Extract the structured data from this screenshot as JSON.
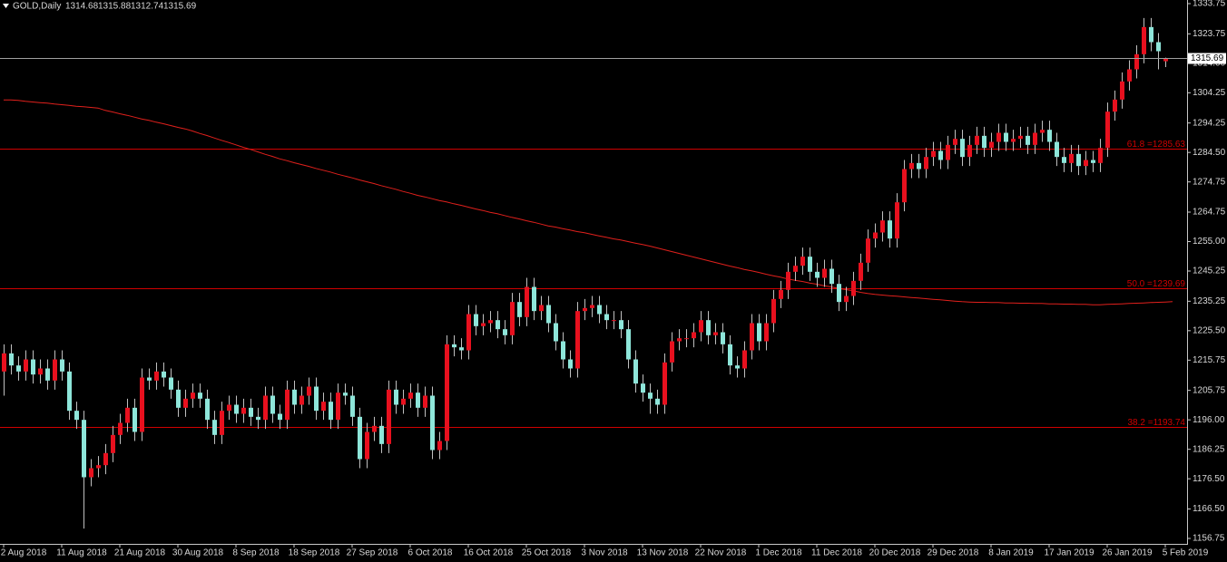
{
  "chart_data": {
    "type": "candlestick",
    "title": "GOLD,Daily",
    "x": [
      "2 Aug 2018",
      null,
      null,
      null,
      null,
      null,
      null,
      null,
      "11 Aug 2018",
      null,
      null,
      null,
      null,
      null,
      null,
      null,
      "21 Aug 2018",
      null,
      null,
      null,
      null,
      null,
      null,
      null,
      "30 Aug 2018",
      null,
      null,
      null,
      null,
      null,
      null,
      null,
      "8 Sep 2018",
      null,
      null,
      null,
      null,
      null,
      null,
      null,
      "18 Sep 2018",
      null,
      null,
      null,
      null,
      null,
      null,
      null,
      "27 Sep 2018",
      null,
      null,
      null,
      null,
      null,
      null,
      null,
      "6 Oct 2018",
      null,
      null,
      null,
      null,
      null,
      null,
      null,
      "16 Oct 2018",
      null,
      null,
      null,
      null,
      null,
      null,
      null,
      "25 Oct 2018",
      null,
      null,
      null,
      null,
      null,
      null,
      null,
      "3 Nov 2018",
      null,
      null,
      null,
      null,
      null,
      null,
      null,
      "13 Nov 2018",
      null,
      null,
      null,
      null,
      null,
      null,
      null,
      "22 Nov 2018",
      null,
      null,
      null,
      null,
      null,
      null,
      null,
      "1 Dec 2018",
      null,
      null,
      null,
      null,
      null,
      null,
      null,
      "11 Dec 2018",
      null,
      null,
      null,
      null,
      null,
      null,
      null,
      "20 Dec 2018",
      null,
      null,
      null,
      null,
      null,
      null,
      null,
      "29 Dec 2018",
      null,
      null,
      null,
      null,
      null,
      null,
      null,
      "8 Jan 2019",
      null,
      null,
      null,
      null,
      null,
      null,
      null,
      "17 Jan 2019",
      null,
      null,
      null,
      null,
      null,
      null,
      null,
      "26 Jan 2019",
      null,
      null,
      null,
      null,
      null,
      null,
      null,
      "5 Feb 2019"
    ],
    "open": [
      1212,
      1218,
      1214,
      1212,
      1216,
      1211,
      1213,
      1209,
      1216,
      1212,
      1199,
      1196,
      1177,
      1180,
      1181,
      1185,
      1191,
      1195,
      1200,
      1192,
      1210,
      1209,
      1212,
      1210,
      1206,
      1200,
      1203,
      1205,
      1203,
      1196,
      1191,
      1199,
      1201,
      1198,
      1200,
      1197,
      1196,
      1204,
      1198,
      1196,
      1206,
      1201,
      1204,
      1207,
      1199,
      1202,
      1196,
      1205,
      1204,
      1197,
      1183,
      1192,
      1194,
      1188,
      1206,
      1201,
      1203,
      1205,
      1200,
      1204,
      1186,
      1189,
      1221,
      1220,
      1219,
      1231,
      1227,
      1228,
      1229,
      1226,
      1224,
      1235,
      1230,
      1240,
      1232,
      1234,
      1228,
      1222,
      1216,
      1213,
      1232,
      1233,
      1234,
      1231,
      1229,
      1229,
      1226,
      1216,
      1208,
      1205,
      1203,
      1201,
      1215,
      1222,
      1223,
      1223,
      1225,
      1229,
      1224,
      1225,
      1221,
      1214,
      1213,
      1219,
      1228,
      1222,
      1228,
      1236,
      1239,
      1245,
      1247,
      1250,
      1245,
      1243,
      1246,
      1241,
      1235,
      1237,
      1242,
      1248,
      1256,
      1258,
      1262,
      1256,
      1268,
      1279,
      1281,
      1279,
      1283,
      1285,
      1282,
      1287,
      1289,
      1283,
      1287,
      1290,
      1286,
      1288,
      1291,
      1288,
      1289,
      1290,
      1287,
      1291,
      1292,
      1288,
      1283,
      1281,
      1284,
      1280,
      1282,
      1281,
      1286,
      1298,
      1302,
      1308,
      1312,
      1317,
      1326,
      1321,
      1314.68
    ],
    "high": [
      1221,
      1221,
      1217,
      1219,
      1219,
      1216,
      1216,
      1219,
      1219,
      1215,
      1202,
      1199,
      1183,
      1184,
      1188,
      1194,
      1198,
      1203,
      1203,
      1213,
      1213,
      1215,
      1215,
      1213,
      1209,
      1206,
      1208,
      1208,
      1206,
      1199,
      1202,
      1204,
      1204,
      1203,
      1203,
      1200,
      1207,
      1207,
      1201,
      1209,
      1209,
      1207,
      1210,
      1210,
      1205,
      1205,
      1208,
      1208,
      1207,
      1200,
      1195,
      1197,
      1197,
      1209,
      1209,
      1206,
      1208,
      1208,
      1207,
      1207,
      1192,
      1224,
      1224,
      1223,
      1234,
      1234,
      1231,
      1232,
      1232,
      1229,
      1238,
      1238,
      1243,
      1243,
      1237,
      1237,
      1231,
      1225,
      1219,
      1235,
      1236,
      1237,
      1237,
      1234,
      1232,
      1232,
      1229,
      1219,
      1211,
      1208,
      1206,
      1218,
      1225,
      1226,
      1226,
      1228,
      1232,
      1232,
      1228,
      1228,
      1224,
      1217,
      1222,
      1231,
      1231,
      1231,
      1239,
      1242,
      1248,
      1250,
      1253,
      1253,
      1248,
      1249,
      1249,
      1244,
      1240,
      1245,
      1251,
      1259,
      1261,
      1265,
      1265,
      1271,
      1282,
      1284,
      1284,
      1286,
      1288,
      1288,
      1290,
      1292,
      1292,
      1290,
      1293,
      1293,
      1291,
      1294,
      1294,
      1292,
      1293,
      1293,
      1294,
      1295,
      1295,
      1291,
      1286,
      1287,
      1287,
      1285,
      1285,
      1289,
      1301,
      1305,
      1311,
      1315,
      1320,
      1329,
      1329,
      1324,
      1315.88
    ],
    "low": [
      1204,
      1211,
      1209,
      1209,
      1208,
      1208,
      1206,
      1206,
      1209,
      1196,
      1193,
      1160,
      1174,
      1177,
      1178,
      1182,
      1188,
      1192,
      1189,
      1189,
      1206,
      1206,
      1207,
      1203,
      1197,
      1197,
      1200,
      1200,
      1193,
      1188,
      1188,
      1196,
      1195,
      1195,
      1194,
      1193,
      1193,
      1195,
      1193,
      1193,
      1198,
      1198,
      1201,
      1196,
      1196,
      1193,
      1193,
      1201,
      1194,
      1180,
      1180,
      1189,
      1185,
      1185,
      1198,
      1198,
      1200,
      1197,
      1197,
      1183,
      1183,
      1186,
      1217,
      1216,
      1216,
      1224,
      1224,
      1225,
      1223,
      1221,
      1221,
      1227,
      1227,
      1229,
      1229,
      1225,
      1219,
      1213,
      1210,
      1210,
      1229,
      1230,
      1228,
      1226,
      1226,
      1223,
      1213,
      1205,
      1202,
      1198,
      1198,
      1198,
      1212,
      1219,
      1220,
      1220,
      1222,
      1221,
      1221,
      1218,
      1211,
      1210,
      1210,
      1216,
      1219,
      1219,
      1225,
      1233,
      1236,
      1242,
      1244,
      1242,
      1240,
      1240,
      1238,
      1232,
      1232,
      1234,
      1239,
      1245,
      1253,
      1255,
      1253,
      1253,
      1265,
      1276,
      1276,
      1276,
      1280,
      1279,
      1279,
      1284,
      1280,
      1280,
      1284,
      1283,
      1283,
      1285,
      1285,
      1285,
      1286,
      1284,
      1284,
      1288,
      1285,
      1280,
      1278,
      1278,
      1277,
      1277,
      1278,
      1278,
      1283,
      1295,
      1299,
      1305,
      1309,
      1314,
      1318,
      1312,
      1312.74
    ],
    "close": [
      1218,
      1214,
      1212,
      1216,
      1211,
      1213,
      1209,
      1216,
      1212,
      1199,
      1196,
      1177,
      1180,
      1181,
      1185,
      1191,
      1195,
      1200,
      1192,
      1210,
      1209,
      1212,
      1210,
      1206,
      1200,
      1203,
      1205,
      1203,
      1196,
      1191,
      1199,
      1201,
      1198,
      1200,
      1197,
      1196,
      1204,
      1198,
      1196,
      1206,
      1201,
      1204,
      1207,
      1199,
      1202,
      1196,
      1205,
      1204,
      1197,
      1183,
      1192,
      1194,
      1188,
      1206,
      1201,
      1203,
      1205,
      1200,
      1204,
      1186,
      1189,
      1221,
      1220,
      1219,
      1231,
      1227,
      1228,
      1229,
      1226,
      1224,
      1235,
      1230,
      1240,
      1232,
      1234,
      1228,
      1222,
      1216,
      1213,
      1232,
      1233,
      1234,
      1231,
      1229,
      1229,
      1226,
      1216,
      1208,
      1205,
      1203,
      1201,
      1215,
      1222,
      1223,
      1223,
      1225,
      1229,
      1224,
      1225,
      1221,
      1214,
      1213,
      1219,
      1228,
      1222,
      1228,
      1236,
      1239,
      1245,
      1247,
      1250,
      1245,
      1243,
      1246,
      1241,
      1235,
      1237,
      1242,
      1248,
      1256,
      1258,
      1262,
      1256,
      1268,
      1279,
      1281,
      1279,
      1283,
      1285,
      1282,
      1287,
      1289,
      1283,
      1287,
      1290,
      1286,
      1288,
      1291,
      1288,
      1289,
      1290,
      1287,
      1291,
      1292,
      1288,
      1283,
      1281,
      1284,
      1280,
      1282,
      1281,
      1286,
      1298,
      1302,
      1308,
      1312,
      1317,
      1326,
      1321,
      1318,
      1315.69
    ],
    "moving_average": {
      "color": "#e0201c",
      "values": [
        1301.9,
        1301.9,
        1301.7,
        1301.4,
        1301.2,
        1301.0,
        1300.8,
        1300.5,
        1300.3,
        1300.1,
        1299.8,
        1299.6,
        1299.4,
        1299.2,
        1298.4,
        1297.9,
        1297.3,
        1296.8,
        1296.2,
        1295.6,
        1295.1,
        1294.5,
        1294.0,
        1293.4,
        1292.8,
        1292.3,
        1291.6,
        1290.8,
        1290.1,
        1289.3,
        1288.5,
        1287.8,
        1287.0,
        1286.2,
        1285.5,
        1284.7,
        1283.9,
        1283.2,
        1282.4,
        1281.8,
        1281.1,
        1280.5,
        1279.9,
        1279.2,
        1278.6,
        1278.0,
        1277.3,
        1276.7,
        1276.1,
        1275.4,
        1274.8,
        1274.2,
        1273.5,
        1272.9,
        1272.3,
        1271.6,
        1271.0,
        1270.3,
        1269.8,
        1269.2,
        1268.6,
        1268.1,
        1267.5,
        1267.0,
        1266.4,
        1265.8,
        1265.3,
        1264.7,
        1264.2,
        1263.6,
        1263.0,
        1262.5,
        1261.9,
        1261.4,
        1260.8,
        1260.2,
        1259.8,
        1259.3,
        1258.8,
        1258.3,
        1257.9,
        1257.4,
        1256.9,
        1256.4,
        1255.9,
        1255.5,
        1255.0,
        1254.5,
        1254.0,
        1253.5,
        1252.9,
        1252.3,
        1251.7,
        1251.1,
        1250.5,
        1249.9,
        1249.3,
        1248.7,
        1248.1,
        1247.5,
        1246.9,
        1246.4,
        1245.8,
        1245.3,
        1244.8,
        1244.2,
        1243.7,
        1243.2,
        1242.6,
        1242.2,
        1241.8,
        1241.3,
        1240.9,
        1240.4,
        1240.0,
        1239.5,
        1239.1,
        1238.7,
        1238.2,
        1237.8,
        1237.5,
        1237.3,
        1237.1,
        1236.9,
        1236.7,
        1236.5,
        1236.3,
        1236.1,
        1235.9,
        1235.7,
        1235.5,
        1235.3,
        1235.1,
        1235.0,
        1234.9,
        1234.9,
        1234.8,
        1234.8,
        1234.7,
        1234.7,
        1234.6,
        1234.6,
        1234.5,
        1234.5,
        1234.4,
        1234.4,
        1234.3,
        1234.3,
        1234.2,
        1234.2,
        1234.1,
        1234.1,
        1234.2,
        1234.3,
        1234.4,
        1234.5,
        1234.6,
        1234.7,
        1234.8,
        1234.9,
        1235.0,
        1235.1
      ]
    },
    "fib_levels": [
      {
        "value": 1285.63,
        "label": "61.8 =1285.63"
      },
      {
        "value": 1239.69,
        "label": "50.0 =1239.69"
      },
      {
        "value": 1193.74,
        "label": "38.2 =1193.74"
      }
    ],
    "fib_color": "#d00000",
    "up_color": "#e8101e",
    "down_color": "#8ee6da",
    "wick_color": "#c0c0c0",
    "price_line_color": "#a0a0a0",
    "ylim": [
      1156.75,
      1333.75
    ],
    "yticks": [
      1333.75,
      1323.75,
      {
        "value": 1314,
        "label": "1314.00"
      },
      1304.25,
      1294.25,
      {
        "value": 1284.5,
        "label": "1284.50"
      },
      1274.75,
      1264.75,
      {
        "value": 1255,
        "label": "1255.00"
      },
      1245.25,
      1235.25,
      {
        "value": 1225.5,
        "label": "1225.50"
      },
      1215.75,
      1205.75,
      {
        "value": 1196,
        "label": "1196.00"
      },
      1186.25,
      {
        "value": 1176.5,
        "label": "1176.50"
      },
      {
        "value": 1166.5,
        "label": "1166.50"
      },
      1156.75
    ]
  }
}
